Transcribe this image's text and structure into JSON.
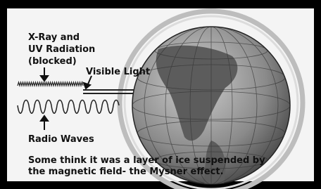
{
  "labels": {
    "xray": [
      "X-Ray and",
      "UV Radiation",
      "(blocked)"
    ],
    "visible": "Visible Light",
    "radio": "Radio Waves"
  },
  "caption": [
    "Some think it was a layer of ice suspended by",
    "the magnetic field- the Mysner effect."
  ]
}
